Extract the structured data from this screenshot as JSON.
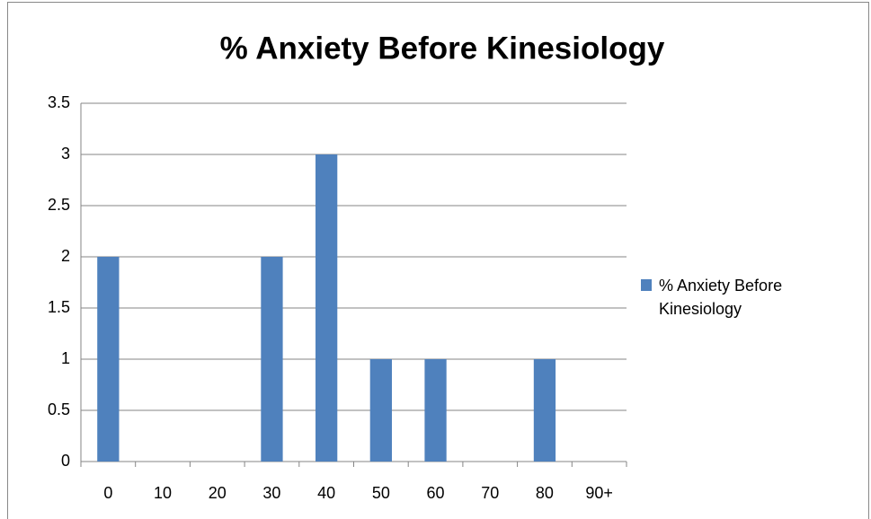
{
  "chart_data": {
    "type": "bar",
    "title": "% Anxiety Before Kinesiology",
    "categories": [
      "0",
      "10",
      "20",
      "30",
      "40",
      "50",
      "60",
      "70",
      "80",
      "90+"
    ],
    "series": [
      {
        "name": "% Anxiety Before Kinesiology",
        "color": "#4f81bd",
        "values": [
          2,
          0,
          0,
          2,
          3,
          1,
          1,
          0,
          1,
          0
        ]
      }
    ],
    "ylim": [
      0,
      3.5
    ],
    "yticks": [
      0,
      0.5,
      1,
      1.5,
      2,
      2.5,
      3,
      3.5
    ],
    "grid": true,
    "legend": "right"
  }
}
